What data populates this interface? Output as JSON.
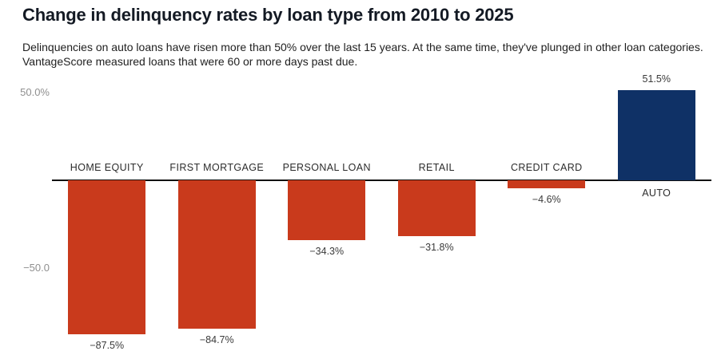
{
  "header": {
    "title": "Change in delinquency rates by loan type from 2010 to 2025",
    "subtitle": "Delinquencies on auto loans have risen more than 50% over the last 15 years. At the same time, they've plunged in other loan categories. VantageScore measured loans that were 60 or more days past due."
  },
  "chart_data": {
    "type": "bar",
    "title": "Change in delinquency rates by loan type from 2010 to 2025",
    "categories": [
      "HOME EQUITY",
      "FIRST MORTGAGE",
      "PERSONAL LOAN",
      "RETAIL",
      "CREDIT CARD",
      "AUTO"
    ],
    "values": [
      -87.5,
      -84.7,
      -34.3,
      -31.8,
      -4.6,
      51.5
    ],
    "value_labels": [
      "−87.5%",
      "−84.7%",
      "−34.3%",
      "−31.8%",
      "−4.6%",
      "51.5%"
    ],
    "xlabel": "",
    "ylabel": "",
    "ylim": [
      -100,
      60
    ],
    "y_ticks": [
      {
        "value": 50,
        "label": "50.0%"
      },
      {
        "value": -50,
        "label": "−50.0"
      }
    ],
    "baseline": 0,
    "grid": false,
    "legend": false,
    "colors": {
      "negative": "#c93a1c",
      "positive": "#0f3166"
    }
  }
}
